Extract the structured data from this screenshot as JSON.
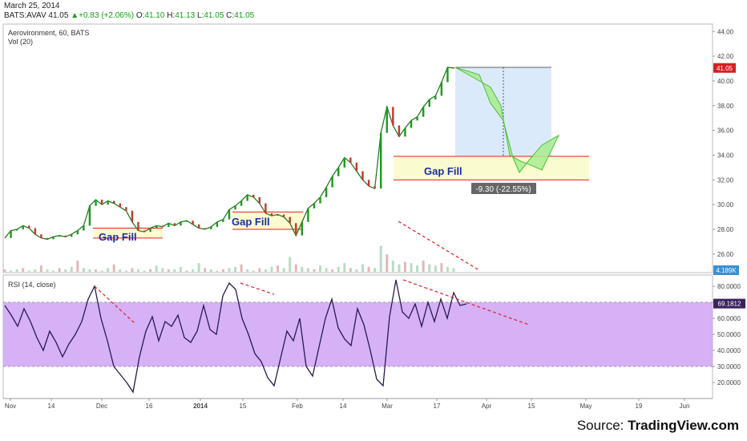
{
  "header": {
    "date": "March 25, 2014",
    "symbol": "BATS:AVAV",
    "last": "41.05",
    "change": "+0.83 (+2.06%)",
    "open_label": "O:",
    "open": "41.10",
    "high_label": "H:",
    "high": "41.13",
    "low_label": "L:",
    "low": "41.05",
    "close_label": "C:",
    "close": "41.05"
  },
  "source": {
    "prefix": "Source: ",
    "name": "TradingView.com"
  },
  "colors": {
    "up": "#1a9a1a",
    "down": "#c0392b",
    "rsi_line": "#2a1850",
    "rsi_band": "#cfa3f5",
    "projection": "#a8ec8f",
    "gap_box": "#fbfbd0",
    "trend": "#e02020"
  },
  "chart_data": [
    {
      "type": "line",
      "title": "Aerovironment, 60, BATS",
      "indicator_label": "Vol (20)",
      "ylim": [
        24.5,
        44.6
      ],
      "y_ticks": [
        "44.00",
        "42.00",
        "40.00",
        "38.00",
        "36.00",
        "34.00",
        "32.00",
        "30.00",
        "28.00",
        "26.00"
      ],
      "price_tag": "41.05",
      "volume_tag": "4.189K",
      "x_ticks": [
        "Nov",
        "14",
        "Dec",
        "16",
        "2014",
        "15",
        "Feb",
        "14",
        "Mar",
        "17",
        "Apr",
        "15",
        "May",
        "19",
        "Jun"
      ],
      "series": [
        {
          "values": [
            27.3,
            27.9,
            28.0,
            28.3,
            28.1,
            27.6,
            27.3,
            27.2,
            27.4,
            27.5,
            27.4,
            27.6,
            27.9,
            28.3,
            29.9,
            30.4,
            30.0,
            30.3,
            30.1,
            29.8,
            29.5,
            28.6,
            27.9,
            27.8,
            28.1,
            28.3,
            28.2,
            28.5,
            28.3,
            28.6,
            28.7,
            28.4,
            28.1,
            28.0,
            28.2,
            28.6,
            28.8,
            29.6,
            29.9,
            30.3,
            30.8,
            30.6,
            30.1,
            29.3,
            29.1,
            29.2,
            29.0,
            28.5,
            27.5,
            28.6,
            29.7,
            30.1,
            30.6,
            31.4,
            32.3,
            33.0,
            33.8,
            33.4,
            32.7,
            32.0,
            31.5,
            31.3,
            35.8,
            37.9,
            36.4,
            35.5,
            36.2,
            36.8,
            37.1,
            37.9,
            38.5,
            38.8,
            39.9,
            41.1,
            41.05
          ]
        }
      ],
      "annotations": [
        {
          "label": "Gap Fill",
          "low": 27.3,
          "high": 28.1
        },
        {
          "label": "Gap Fill",
          "low": 28.0,
          "high": 29.4
        },
        {
          "label": "Gap Fill",
          "low": 32.0,
          "high": 33.9
        }
      ],
      "measure_label": "-9.30 (-22.55%)",
      "projection": [
        41.1,
        40.5,
        38.2,
        36.8,
        33.8,
        32.6,
        33.6,
        34.8,
        35.6
      ]
    },
    {
      "type": "line",
      "title": "RSI (14, close)",
      "ylim": [
        10,
        87
      ],
      "y_ticks": [
        "80.0000",
        "70.0000",
        "60.0000",
        "50.0000",
        "40.0000",
        "30.0000",
        "20.0000"
      ],
      "band": [
        30,
        70
      ],
      "value_tag": "69.1812",
      "series": [
        {
          "values": [
            68,
            62,
            55,
            66,
            58,
            48,
            40,
            52,
            45,
            36,
            44,
            50,
            58,
            72,
            80,
            60,
            46,
            30,
            25,
            20,
            14,
            36,
            52,
            61,
            46,
            58,
            55,
            62,
            48,
            45,
            52,
            68,
            53,
            50,
            74,
            82,
            78,
            60,
            50,
            38,
            33,
            23,
            18,
            35,
            52,
            46,
            60,
            30,
            24,
            42,
            60,
            72,
            54,
            47,
            43,
            66,
            56,
            40,
            22,
            18,
            61,
            84,
            64,
            60,
            69,
            55,
            70,
            58,
            72,
            60,
            76,
            68,
            69
          ]
        }
      ]
    }
  ]
}
